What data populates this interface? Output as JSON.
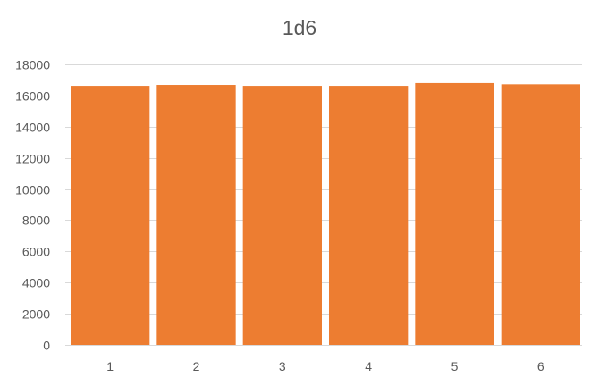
{
  "chart_data": {
    "type": "bar",
    "title": "1d6",
    "xlabel": "",
    "ylabel": "",
    "categories": [
      "1",
      "2",
      "3",
      "4",
      "5",
      "6"
    ],
    "values": [
      16620,
      16680,
      16620,
      16620,
      16800,
      16720
    ],
    "ylim": [
      0,
      18000
    ],
    "yticks": [
      "0",
      "2000",
      "4000",
      "6000",
      "8000",
      "10000",
      "12000",
      "14000",
      "16000",
      "18000"
    ],
    "grid": true,
    "legend": "none",
    "bar_color": "#ed7d31"
  }
}
